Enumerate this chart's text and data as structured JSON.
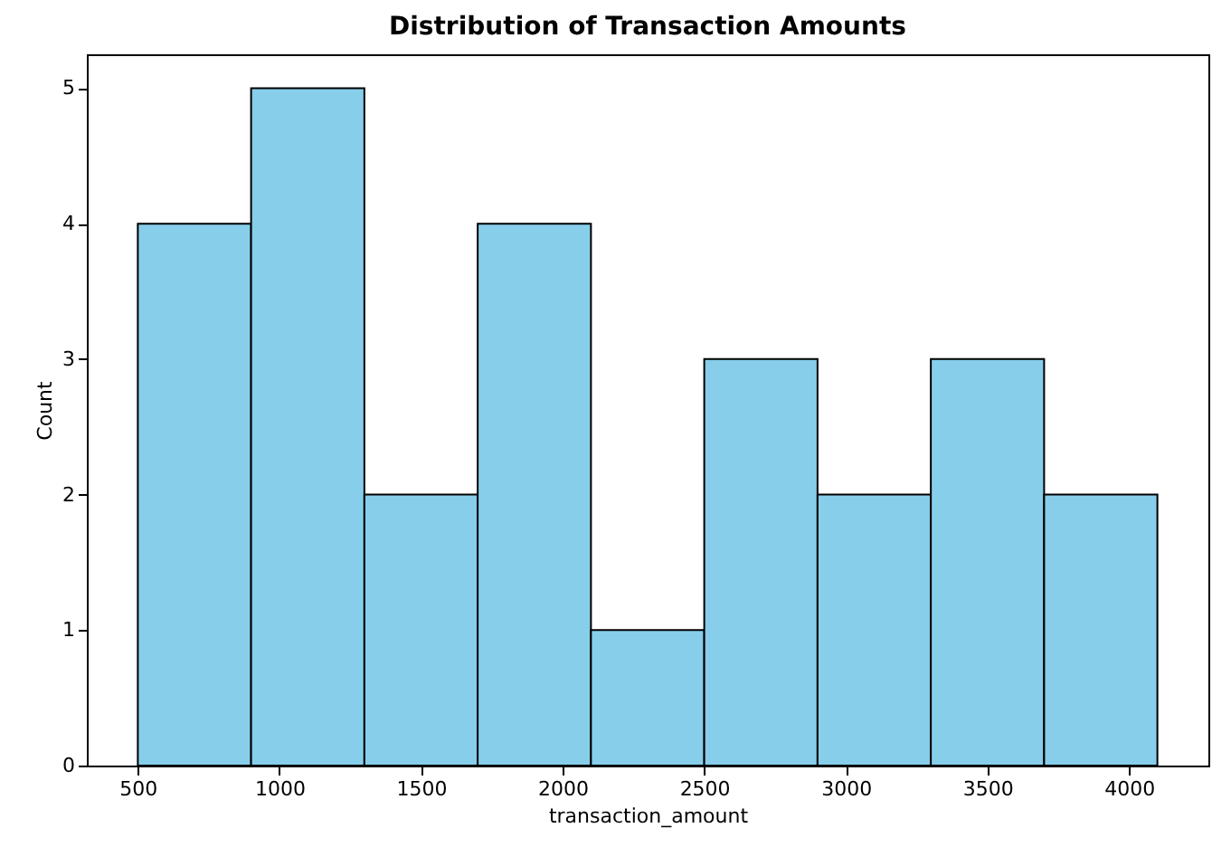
{
  "chart_data": {
    "type": "histogram",
    "title": "Distribution of Transaction Amounts",
    "xlabel": "transaction_amount",
    "ylabel": "Count",
    "bins": [
      500,
      900,
      1300,
      1700,
      2100,
      2500,
      2900,
      3300,
      3700,
      4100
    ],
    "values": [
      4,
      5,
      2,
      4,
      1,
      3,
      2,
      3,
      2
    ],
    "color": "#87ceeb",
    "xlim": [
      320,
      4280
    ],
    "xticks": [
      500,
      1000,
      1500,
      2000,
      2500,
      3000,
      3500,
      4000
    ],
    "ylim": [
      0,
      5.25
    ],
    "yticks": [
      0,
      1,
      2,
      3,
      4,
      5
    ],
    "grid": false
  }
}
